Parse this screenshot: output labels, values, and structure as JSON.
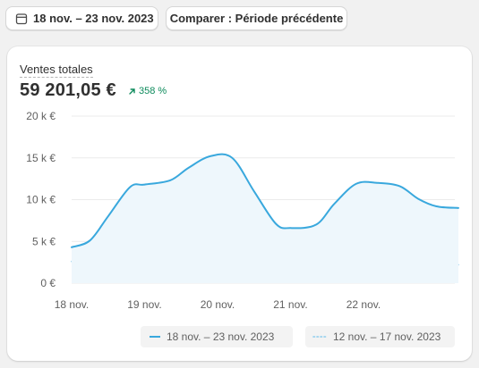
{
  "toolbar": {
    "date_range_label": "18 nov. – 23 nov. 2023",
    "compare_label": "Comparer : Période précédente",
    "calendar_icon": "calendar-icon"
  },
  "metric": {
    "label": "Ventes totales",
    "value": "59 201,05 €",
    "change": "358 %",
    "change_icon": "arrow-up-right-icon",
    "change_color": "#0c8a5b"
  },
  "chart_data": {
    "type": "area",
    "x_tick_labels": [
      "18 nov.",
      "19 nov.",
      "20 nov.",
      "21 nov.",
      "22 nov."
    ],
    "y_tick_labels": [
      "0 €",
      "5 k €",
      "10 k €",
      "15 k €",
      "20 k €"
    ],
    "ylim": [
      0,
      20000
    ],
    "xlim": [
      0,
      5.3
    ],
    "grid": true,
    "legend_position": "bottom-right",
    "series": [
      {
        "name": "18 nov. – 23 nov. 2023",
        "style": "solid",
        "color": "#39a8dd",
        "fill": "#eef7fc",
        "x": [
          0,
          0.25,
          0.5,
          0.8,
          1.0,
          1.35,
          1.6,
          1.9,
          2.2,
          2.5,
          2.8,
          3.0,
          3.35,
          3.6,
          3.9,
          4.2,
          4.5,
          4.75,
          5.0,
          5.3
        ],
        "y": [
          4300,
          5100,
          8000,
          11500,
          11800,
          12300,
          13800,
          15200,
          15000,
          11000,
          7100,
          6600,
          7000,
          9500,
          11900,
          12000,
          11600,
          10100,
          9200,
          9000
        ]
      },
      {
        "name": "12 nov. – 17 nov. 2023",
        "style": "dotted",
        "color": "#8dcdee",
        "x": [
          0,
          0.2,
          0.5,
          0.8,
          1.2,
          1.6,
          2.0,
          2.4,
          2.8,
          3.2,
          3.6,
          4.0,
          4.4,
          4.8,
          5.3
        ],
        "y": [
          2600,
          2550,
          2300,
          2000,
          1850,
          1800,
          1750,
          1750,
          1850,
          2050,
          2100,
          2250,
          2250,
          2200,
          2200
        ]
      }
    ]
  }
}
